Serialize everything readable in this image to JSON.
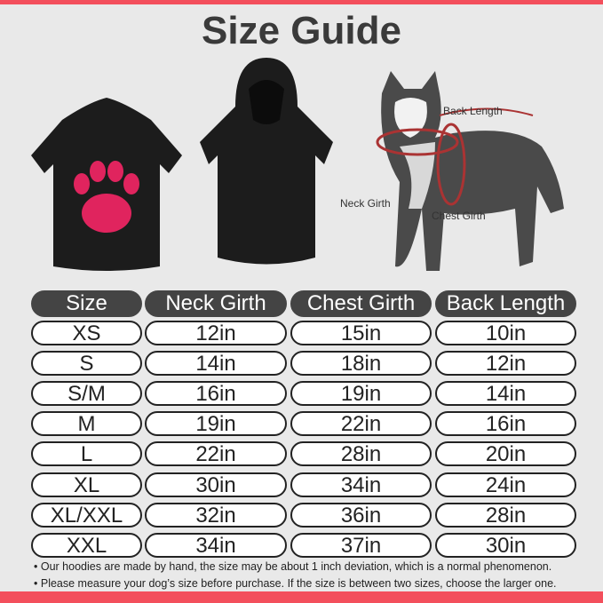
{
  "title": "Size Guide",
  "colors": {
    "accent": "#f34f5c",
    "header_bg": "#444444",
    "paw": "#e0245e"
  },
  "diagram": {
    "back_length": "Back Length",
    "neck_girth": "Neck Girth",
    "chest_girth": "Chest Girth"
  },
  "table": {
    "headers": [
      "Size",
      "Neck Girth",
      "Chest Girth",
      "Back Length"
    ],
    "rows": [
      [
        "XS",
        "12in",
        "15in",
        "10in"
      ],
      [
        "S",
        "14in",
        "18in",
        "12in"
      ],
      [
        "S/M",
        "16in",
        "19in",
        "14in"
      ],
      [
        "M",
        "19in",
        "22in",
        "16in"
      ],
      [
        "L",
        "22in",
        "28in",
        "20in"
      ],
      [
        "XL",
        "30in",
        "34in",
        "24in"
      ],
      [
        "XL/XXL",
        "32in",
        "36in",
        "28in"
      ],
      [
        "XXL",
        "34in",
        "37in",
        "30in"
      ]
    ]
  },
  "notes": [
    "Our hoodies are made by hand, the size may be about 1 inch deviation, which is a normal phenomenon.",
    "Please measure your dog’s size before purchase. If the size is between two sizes, choose the larger one."
  ]
}
